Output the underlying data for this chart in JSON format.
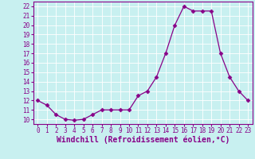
{
  "x": [
    0,
    1,
    2,
    3,
    4,
    5,
    6,
    7,
    8,
    9,
    10,
    11,
    12,
    13,
    14,
    15,
    16,
    17,
    18,
    19,
    20,
    21,
    22,
    23
  ],
  "y": [
    12,
    11.5,
    10.5,
    10,
    9.9,
    10,
    10.5,
    11,
    11,
    11,
    11,
    12.5,
    13,
    14.5,
    17,
    20,
    22,
    21.5,
    21.5,
    21.5,
    17,
    14.5,
    13,
    12
  ],
  "line_color": "#880088",
  "marker": "D",
  "marker_size": 2.5,
  "bg_color": "#c8f0f0",
  "grid_color": "#ffffff",
  "xlabel": "Windchill (Refroidissement éolien,°C)",
  "xlim": [
    -0.5,
    23.5
  ],
  "ylim": [
    9.5,
    22.5
  ],
  "yticks": [
    10,
    11,
    12,
    13,
    14,
    15,
    16,
    17,
    18,
    19,
    20,
    21,
    22
  ],
  "xticks": [
    0,
    1,
    2,
    3,
    4,
    5,
    6,
    7,
    8,
    9,
    10,
    11,
    12,
    13,
    14,
    15,
    16,
    17,
    18,
    19,
    20,
    21,
    22,
    23
  ],
  "tick_label_size": 5.5,
  "xlabel_size": 7,
  "spine_color": "#880088"
}
